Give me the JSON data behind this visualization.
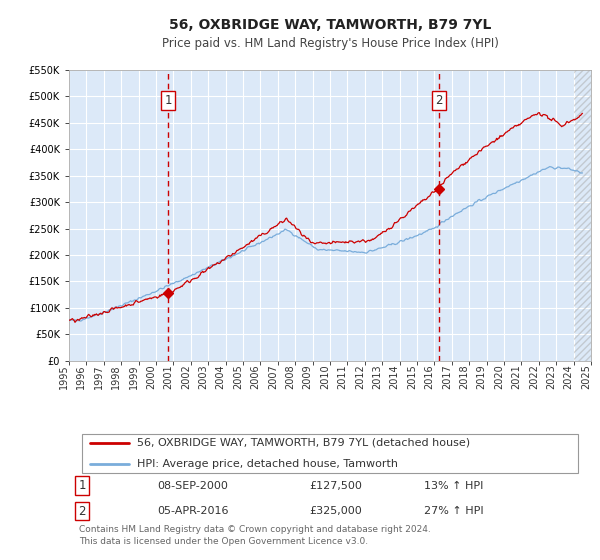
{
  "title": "56, OXBRIDGE WAY, TAMWORTH, B79 7YL",
  "subtitle": "Price paid vs. HM Land Registry's House Price Index (HPI)",
  "ylim": [
    0,
    550000
  ],
  "xlim": [
    1995.0,
    2025.0
  ],
  "yticks": [
    0,
    50000,
    100000,
    150000,
    200000,
    250000,
    300000,
    350000,
    400000,
    450000,
    500000,
    550000
  ],
  "ytick_labels": [
    "£0",
    "£50K",
    "£100K",
    "£150K",
    "£200K",
    "£250K",
    "£300K",
    "£350K",
    "£400K",
    "£450K",
    "£500K",
    "£550K"
  ],
  "xticks": [
    1995,
    1996,
    1997,
    1998,
    1999,
    2000,
    2001,
    2002,
    2003,
    2004,
    2005,
    2006,
    2007,
    2008,
    2009,
    2010,
    2011,
    2012,
    2013,
    2014,
    2015,
    2016,
    2017,
    2018,
    2019,
    2020,
    2021,
    2022,
    2023,
    2024,
    2025
  ],
  "background_color": "#ffffff",
  "plot_bg_color": "#dce9f8",
  "grid_color": "#ffffff",
  "red_line_color": "#cc0000",
  "blue_line_color": "#7aaddb",
  "marker1_x": 2000.7,
  "marker1_y": 127500,
  "marker2_x": 2016.25,
  "marker2_y": 325000,
  "vline1_x": 2000.7,
  "vline2_x": 2016.25,
  "vline_color": "#cc0000",
  "hatch_start": 2024.0,
  "legend_label_red": "56, OXBRIDGE WAY, TAMWORTH, B79 7YL (detached house)",
  "legend_label_blue": "HPI: Average price, detached house, Tamworth",
  "annotation1_label": "1",
  "annotation1_date": "08-SEP-2000",
  "annotation1_price": "£127,500",
  "annotation1_hpi": "13% ↑ HPI",
  "annotation2_label": "2",
  "annotation2_date": "05-APR-2016",
  "annotation2_price": "£325,000",
  "annotation2_hpi": "27% ↑ HPI",
  "footer": "Contains HM Land Registry data © Crown copyright and database right 2024.\nThis data is licensed under the Open Government Licence v3.0.",
  "title_fontsize": 10,
  "subtitle_fontsize": 8.5,
  "tick_fontsize": 7,
  "legend_fontsize": 8,
  "annotation_fontsize": 8,
  "footer_fontsize": 6.5
}
